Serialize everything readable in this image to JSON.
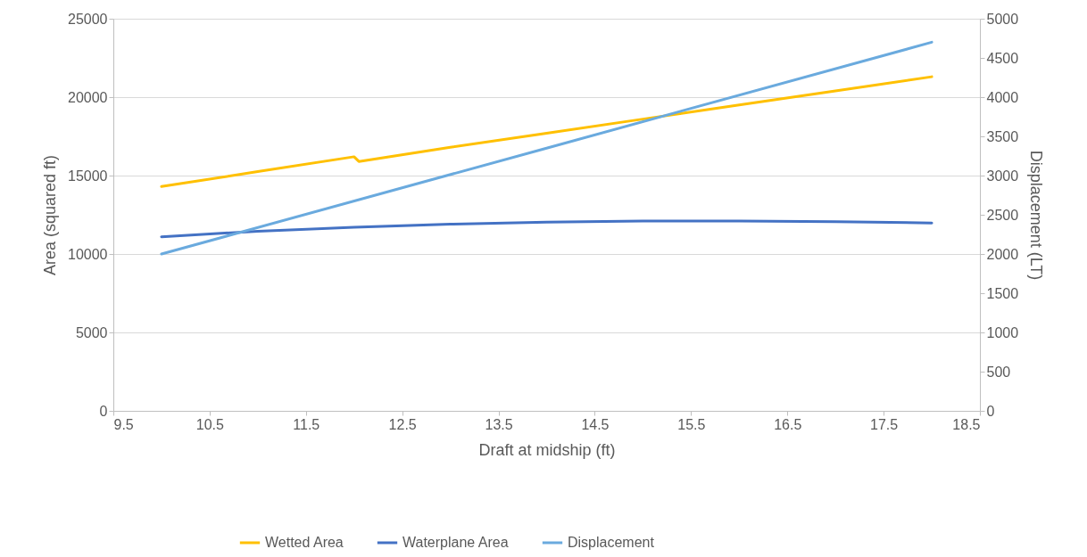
{
  "chart_data": {
    "type": "line",
    "xlabel": "Draft at midship (ft)",
    "ylabel": "Area (squared ft)",
    "y2label": "Displacement (LT)",
    "xlim": [
      9.5,
      18.5
    ],
    "xticks": [
      9.5,
      10.5,
      11.5,
      12.5,
      13.5,
      14.5,
      15.5,
      16.5,
      17.5,
      18.5
    ],
    "ylim": [
      0,
      25000
    ],
    "yticks": [
      0,
      5000,
      10000,
      15000,
      20000,
      25000
    ],
    "y2lim": [
      0,
      5000
    ],
    "y2ticks": [
      0,
      500,
      1000,
      1500,
      2000,
      2500,
      3000,
      3500,
      4000,
      4500,
      5000
    ],
    "grid": "y",
    "legend": "bottom",
    "marker": "none",
    "line_style": "solid",
    "series": [
      {
        "name": "Wetted Area",
        "color": "#ffc000",
        "x": [
          10,
          11,
          12,
          12.05,
          13,
          14,
          15,
          16,
          17,
          18
        ],
        "values": [
          14300,
          15250,
          16200,
          15900,
          16800,
          17700,
          18600,
          19500,
          20400,
          21300
        ]
      },
      {
        "name": "Waterplane Area",
        "color": "#4472c4",
        "x": [
          10,
          11,
          12,
          13,
          14,
          15,
          16,
          17,
          18
        ],
        "values": [
          11100,
          11450,
          11700,
          11900,
          12030,
          12100,
          12100,
          12060,
          11980
        ]
      },
      {
        "name": "Displacement",
        "color": "#6aaade",
        "axis": "y2",
        "x": [
          10,
          14,
          18
        ],
        "values": [
          2000,
          3350,
          4700
        ]
      }
    ]
  }
}
